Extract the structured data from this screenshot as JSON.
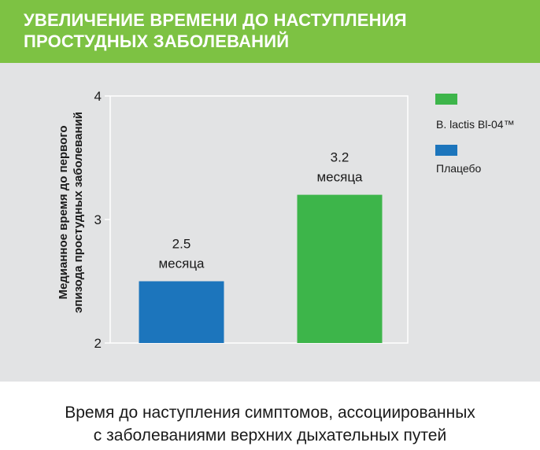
{
  "header": {
    "title_line1": "УВЕЛИЧЕНИЕ ВРЕМЕНИ ДО НАСТУПЛЕНИЯ",
    "title_line2": "ПРОСТУДНЫХ ЗАБОЛЕВАНИЙ"
  },
  "colors": {
    "header_bg": "#7dc243",
    "panel_bg": "#e2e3e4",
    "green_bar": "#3db54a",
    "blue_bar": "#1c75bc"
  },
  "chart_data": {
    "type": "bar",
    "title": "",
    "ylabel_line1": "Медианное время до первого",
    "ylabel_line2": "эпизода простудных заболеваний",
    "xlabel": "",
    "ylim": [
      2,
      4
    ],
    "yticks": [
      "2",
      "3",
      "4"
    ],
    "grid": false,
    "legend_position": "right",
    "bars": [
      {
        "series": "Плацебо",
        "value": 2.5,
        "label_value": "2.5",
        "label_unit": "месяца",
        "color": "#1c75bc"
      },
      {
        "series": "B. lactis Bl-04™",
        "value": 3.2,
        "label_value": "3.2",
        "label_unit": "месяца",
        "color": "#3db54a"
      }
    ]
  },
  "legend": [
    {
      "label": "B. lactis Bl-04™",
      "color": "#3db54a"
    },
    {
      "label": "Плацебо",
      "color": "#1c75bc"
    }
  ],
  "caption": {
    "line1": "Время до наступления симптомов, ассоциированных",
    "line2": "с заболеваниями верхних дыхательных путей"
  }
}
